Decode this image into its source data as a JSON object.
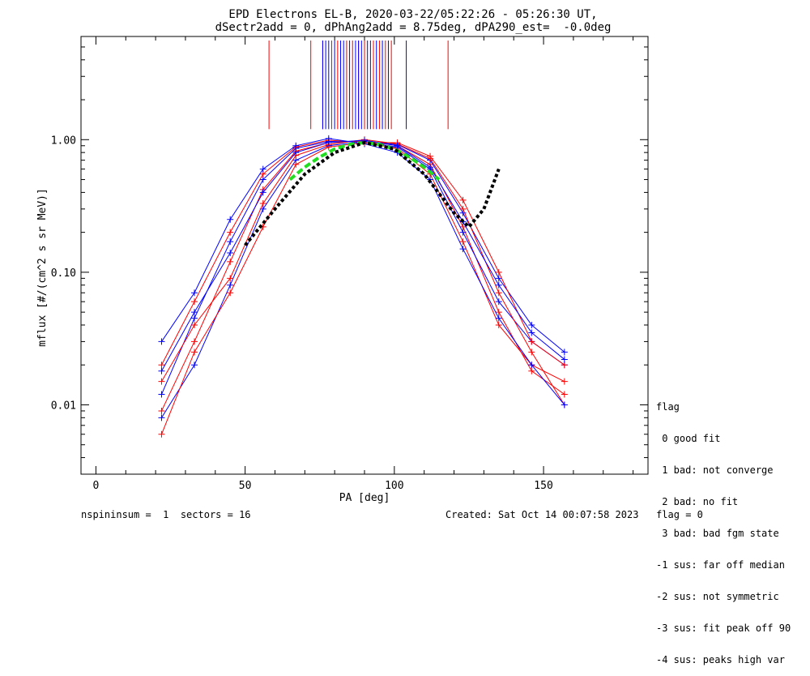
{
  "title_line1": "EPD Electrons EL-B, 2020-03-22/05:22:26 - 05:26:30 UT,",
  "title_line2": "dSectr2add = 0, dPhAng2add = 8.75deg, dPA290_est=  -0.0deg",
  "footer": {
    "left": "nspininsum =  1  sectors = 16",
    "right": "Created: Sat Oct 14 00:07:58 2023   flag = 0"
  },
  "legend": {
    "title": "flag",
    "items": [
      " 0 good fit",
      " 1 bad: not converge",
      " 2 bad: no fit",
      " 3 bad: bad fgm state",
      "-1 sus: far off median",
      "-2 sus: not symmetric",
      "-3 sus: fit peak off 90",
      "-4 sus: peaks high var"
    ]
  },
  "colors": {
    "red": "#ff0000",
    "blue": "#0000ff",
    "green": "#22dd22",
    "black": "#000000"
  },
  "chart_data": {
    "type": "line",
    "xlabel": "PA [deg]",
    "ylabel": "mflux [#/(cm^2 s sr MeV)]",
    "xlim": [
      -5,
      185
    ],
    "ylim": [
      0.003,
      6
    ],
    "yscale": "log",
    "xticks": [
      0,
      50,
      100,
      150
    ],
    "yticks": [
      0.01,
      0.1,
      1.0
    ],
    "ytick_labels": [
      "0.01",
      "0.10",
      "1.00"
    ],
    "pa_bins": [
      22,
      33,
      45,
      56,
      67,
      78,
      90,
      101,
      112,
      123,
      135,
      146,
      157
    ],
    "series": [
      {
        "color": "red",
        "values": [
          0.009,
          0.03,
          0.12,
          0.42,
          0.82,
          0.95,
          0.98,
          0.9,
          0.65,
          0.22,
          0.05,
          0.018,
          0.012
        ]
      },
      {
        "color": "blue",
        "values": [
          0.012,
          0.045,
          0.17,
          0.5,
          0.86,
          0.97,
          0.96,
          0.88,
          0.6,
          0.2,
          0.06,
          0.03,
          0.02
        ]
      },
      {
        "color": "red",
        "values": [
          0.02,
          0.06,
          0.2,
          0.55,
          0.88,
          0.99,
          0.95,
          0.86,
          0.55,
          0.17,
          0.04,
          0.02,
          0.015
        ]
      },
      {
        "color": "blue",
        "values": [
          0.008,
          0.02,
          0.08,
          0.3,
          0.7,
          0.9,
          0.97,
          0.92,
          0.7,
          0.28,
          0.09,
          0.04,
          0.025
        ]
      },
      {
        "color": "red",
        "values": [
          0.015,
          0.04,
          0.09,
          0.33,
          0.76,
          0.92,
          1.0,
          0.93,
          0.72,
          0.3,
          0.07,
          0.025,
          0.01
        ]
      },
      {
        "color": "blue",
        "values": [
          0.03,
          0.07,
          0.25,
          0.6,
          0.9,
          1.02,
          0.93,
          0.8,
          0.5,
          0.15,
          0.045,
          0.02,
          0.01
        ]
      },
      {
        "color": "red",
        "values": [
          0.006,
          0.025,
          0.07,
          0.22,
          0.65,
          0.88,
          0.95,
          0.95,
          0.75,
          0.35,
          0.1,
          0.03,
          0.02
        ]
      },
      {
        "color": "blue",
        "values": [
          0.018,
          0.05,
          0.14,
          0.4,
          0.8,
          0.95,
          0.99,
          0.9,
          0.62,
          0.24,
          0.08,
          0.035,
          0.022
        ]
      }
    ],
    "fit_curves": [
      {
        "color": "green",
        "style": "dashed",
        "x": [
          65,
          70,
          75,
          80,
          85,
          90,
          95,
          100,
          105,
          110,
          115
        ],
        "y": [
          0.5,
          0.62,
          0.74,
          0.85,
          0.92,
          0.95,
          0.92,
          0.85,
          0.74,
          0.62,
          0.5
        ]
      },
      {
        "color": "black",
        "style": "dotted",
        "x": [
          50,
          60,
          70,
          80,
          90,
          100,
          110,
          120,
          125,
          130,
          135
        ],
        "y": [
          0.16,
          0.3,
          0.55,
          0.8,
          0.95,
          0.85,
          0.55,
          0.28,
          0.22,
          0.3,
          0.6
        ]
      }
    ],
    "vertical_markers": [
      {
        "color": "red",
        "x": [
          58,
          72,
          76,
          79,
          81,
          84,
          86,
          88,
          90,
          93,
          95,
          97,
          99,
          118
        ]
      },
      {
        "color": "blue",
        "x": [
          76,
          77,
          78,
          80,
          82,
          83,
          85,
          87,
          88,
          89,
          91,
          92,
          94,
          96,
          98,
          104
        ]
      }
    ]
  }
}
